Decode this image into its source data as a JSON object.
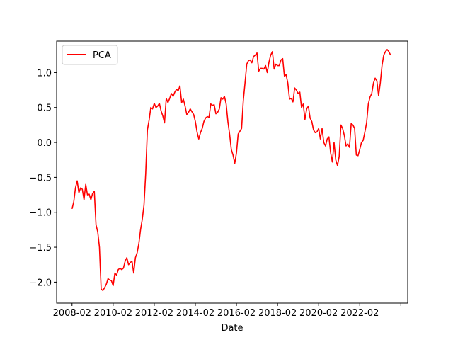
{
  "chart_data": {
    "type": "line",
    "title": "",
    "xlabel": "Date",
    "ylabel": "",
    "x_tick_labels": [
      "2008-02",
      "2010-02",
      "2012-02",
      "2014-02",
      "2016-02",
      "2018-02",
      "2020-02",
      "2022-02"
    ],
    "y_tick_labels": [
      "−2.0",
      "−1.5",
      "−1.0",
      "−0.5",
      "0.0",
      "0.5",
      "1.0"
    ],
    "xlim": [
      "2007-05",
      "2024-06"
    ],
    "ylim": [
      -2.3,
      1.45
    ],
    "grid": false,
    "legend_position": "upper left",
    "series": [
      {
        "name": "PCA",
        "color": "#ff0000",
        "points": [
          [
            "2008-02",
            -0.95
          ],
          [
            "2008-03",
            -0.85
          ],
          [
            "2008-04",
            -0.65
          ],
          [
            "2008-05",
            -0.55
          ],
          [
            "2008-06",
            -0.72
          ],
          [
            "2008-07",
            -0.65
          ],
          [
            "2008-08",
            -0.67
          ],
          [
            "2008-09",
            -0.82
          ],
          [
            "2008-10",
            -0.6
          ],
          [
            "2008-11",
            -0.75
          ],
          [
            "2008-12",
            -0.74
          ],
          [
            "2009-01",
            -0.82
          ],
          [
            "2009-02",
            -0.73
          ],
          [
            "2009-03",
            -0.7
          ],
          [
            "2009-04",
            -1.18
          ],
          [
            "2009-05",
            -1.28
          ],
          [
            "2009-06",
            -1.5
          ],
          [
            "2009-07",
            -2.1
          ],
          [
            "2009-08",
            -2.12
          ],
          [
            "2009-09",
            -2.08
          ],
          [
            "2009-10",
            -2.03
          ],
          [
            "2009-11",
            -1.95
          ],
          [
            "2009-12",
            -1.97
          ],
          [
            "2010-01",
            -1.98
          ],
          [
            "2010-02",
            -2.05
          ],
          [
            "2010-03",
            -1.87
          ],
          [
            "2010-04",
            -1.9
          ],
          [
            "2010-05",
            -1.82
          ],
          [
            "2010-06",
            -1.8
          ],
          [
            "2010-07",
            -1.82
          ],
          [
            "2010-08",
            -1.8
          ],
          [
            "2010-09",
            -1.7
          ],
          [
            "2010-10",
            -1.65
          ],
          [
            "2010-11",
            -1.75
          ],
          [
            "2010-12",
            -1.72
          ],
          [
            "2011-01",
            -1.7
          ],
          [
            "2011-02",
            -1.87
          ],
          [
            "2011-03",
            -1.65
          ],
          [
            "2011-04",
            -1.58
          ],
          [
            "2011-05",
            -1.45
          ],
          [
            "2011-06",
            -1.25
          ],
          [
            "2011-07",
            -1.1
          ],
          [
            "2011-08",
            -0.9
          ],
          [
            "2011-09",
            -0.45
          ],
          [
            "2011-10",
            0.18
          ],
          [
            "2011-11",
            0.32
          ],
          [
            "2011-12",
            0.5
          ],
          [
            "2012-01",
            0.48
          ],
          [
            "2012-02",
            0.56
          ],
          [
            "2012-03",
            0.5
          ],
          [
            "2012-04",
            0.52
          ],
          [
            "2012-05",
            0.56
          ],
          [
            "2012-06",
            0.45
          ],
          [
            "2012-07",
            0.38
          ],
          [
            "2012-08",
            0.28
          ],
          [
            "2012-09",
            0.63
          ],
          [
            "2012-10",
            0.57
          ],
          [
            "2012-11",
            0.63
          ],
          [
            "2012-12",
            0.7
          ],
          [
            "2013-01",
            0.66
          ],
          [
            "2013-02",
            0.72
          ],
          [
            "2013-03",
            0.76
          ],
          [
            "2013-04",
            0.74
          ],
          [
            "2013-05",
            0.81
          ],
          [
            "2013-06",
            0.57
          ],
          [
            "2013-07",
            0.62
          ],
          [
            "2013-08",
            0.52
          ],
          [
            "2013-09",
            0.4
          ],
          [
            "2013-10",
            0.43
          ],
          [
            "2013-11",
            0.48
          ],
          [
            "2013-12",
            0.44
          ],
          [
            "2014-01",
            0.4
          ],
          [
            "2014-02",
            0.3
          ],
          [
            "2014-03",
            0.15
          ],
          [
            "2014-04",
            0.05
          ],
          [
            "2014-05",
            0.14
          ],
          [
            "2014-06",
            0.2
          ],
          [
            "2014-07",
            0.3
          ],
          [
            "2014-08",
            0.35
          ],
          [
            "2014-09",
            0.37
          ],
          [
            "2014-10",
            0.36
          ],
          [
            "2014-11",
            0.55
          ],
          [
            "2014-12",
            0.53
          ],
          [
            "2015-01",
            0.54
          ],
          [
            "2015-02",
            0.41
          ],
          [
            "2015-03",
            0.43
          ],
          [
            "2015-04",
            0.48
          ],
          [
            "2015-05",
            0.64
          ],
          [
            "2015-06",
            0.62
          ],
          [
            "2015-07",
            0.66
          ],
          [
            "2015-08",
            0.55
          ],
          [
            "2015-09",
            0.3
          ],
          [
            "2015-10",
            0.12
          ],
          [
            "2015-11",
            -0.1
          ],
          [
            "2015-12",
            -0.18
          ],
          [
            "2016-01",
            -0.3
          ],
          [
            "2016-02",
            -0.15
          ],
          [
            "2016-03",
            0.12
          ],
          [
            "2016-04",
            0.16
          ],
          [
            "2016-05",
            0.2
          ],
          [
            "2016-06",
            0.6
          ],
          [
            "2016-07",
            0.85
          ],
          [
            "2016-08",
            1.12
          ],
          [
            "2016-09",
            1.17
          ],
          [
            "2016-10",
            1.18
          ],
          [
            "2016-11",
            1.14
          ],
          [
            "2016-12",
            1.23
          ],
          [
            "2017-01",
            1.25
          ],
          [
            "2017-02",
            1.28
          ],
          [
            "2017-03",
            1.02
          ],
          [
            "2017-04",
            1.06
          ],
          [
            "2017-05",
            1.06
          ],
          [
            "2017-06",
            1.05
          ],
          [
            "2017-07",
            1.1
          ],
          [
            "2017-08",
            1.0
          ],
          [
            "2017-09",
            1.15
          ],
          [
            "2017-10",
            1.25
          ],
          [
            "2017-11",
            1.3
          ],
          [
            "2017-12",
            1.05
          ],
          [
            "2018-01",
            1.12
          ],
          [
            "2018-02",
            1.1
          ],
          [
            "2018-03",
            1.1
          ],
          [
            "2018-04",
            1.18
          ],
          [
            "2018-05",
            1.2
          ],
          [
            "2018-06",
            0.95
          ],
          [
            "2018-07",
            0.97
          ],
          [
            "2018-08",
            0.85
          ],
          [
            "2018-09",
            0.62
          ],
          [
            "2018-10",
            0.63
          ],
          [
            "2018-11",
            0.58
          ],
          [
            "2018-12",
            0.78
          ],
          [
            "2019-01",
            0.75
          ],
          [
            "2019-02",
            0.7
          ],
          [
            "2019-03",
            0.72
          ],
          [
            "2019-04",
            0.5
          ],
          [
            "2019-05",
            0.55
          ],
          [
            "2019-06",
            0.33
          ],
          [
            "2019-07",
            0.48
          ],
          [
            "2019-08",
            0.52
          ],
          [
            "2019-09",
            0.35
          ],
          [
            "2019-10",
            0.3
          ],
          [
            "2019-11",
            0.18
          ],
          [
            "2019-12",
            0.14
          ],
          [
            "2020-01",
            0.15
          ],
          [
            "2020-02",
            0.2
          ],
          [
            "2020-03",
            0.05
          ],
          [
            "2020-04",
            0.2
          ],
          [
            "2020-05",
            0.0
          ],
          [
            "2020-06",
            -0.05
          ],
          [
            "2020-07",
            0.05
          ],
          [
            "2020-08",
            0.08
          ],
          [
            "2020-09",
            -0.15
          ],
          [
            "2020-10",
            -0.28
          ],
          [
            "2020-11",
            0.0
          ],
          [
            "2020-12",
            -0.25
          ],
          [
            "2021-01",
            -0.33
          ],
          [
            "2021-02",
            -0.2
          ],
          [
            "2021-03",
            0.25
          ],
          [
            "2021-04",
            0.2
          ],
          [
            "2021-05",
            0.1
          ],
          [
            "2021-06",
            -0.05
          ],
          [
            "2021-07",
            -0.02
          ],
          [
            "2021-08",
            -0.07
          ],
          [
            "2021-09",
            0.27
          ],
          [
            "2021-10",
            0.25
          ],
          [
            "2021-11",
            0.2
          ],
          [
            "2021-12",
            -0.18
          ],
          [
            "2022-01",
            -0.19
          ],
          [
            "2022-02",
            -0.1
          ],
          [
            "2022-03",
            0.0
          ],
          [
            "2022-04",
            0.03
          ],
          [
            "2022-05",
            0.15
          ],
          [
            "2022-06",
            0.28
          ],
          [
            "2022-07",
            0.55
          ],
          [
            "2022-08",
            0.65
          ],
          [
            "2022-09",
            0.7
          ],
          [
            "2022-10",
            0.85
          ],
          [
            "2022-11",
            0.92
          ],
          [
            "2022-12",
            0.88
          ],
          [
            "2023-01",
            0.67
          ],
          [
            "2023-02",
            0.85
          ],
          [
            "2023-03",
            1.1
          ],
          [
            "2023-04",
            1.25
          ],
          [
            "2023-05",
            1.3
          ],
          [
            "2023-06",
            1.33
          ],
          [
            "2023-07",
            1.3
          ],
          [
            "2023-08",
            1.25
          ]
        ]
      }
    ]
  }
}
